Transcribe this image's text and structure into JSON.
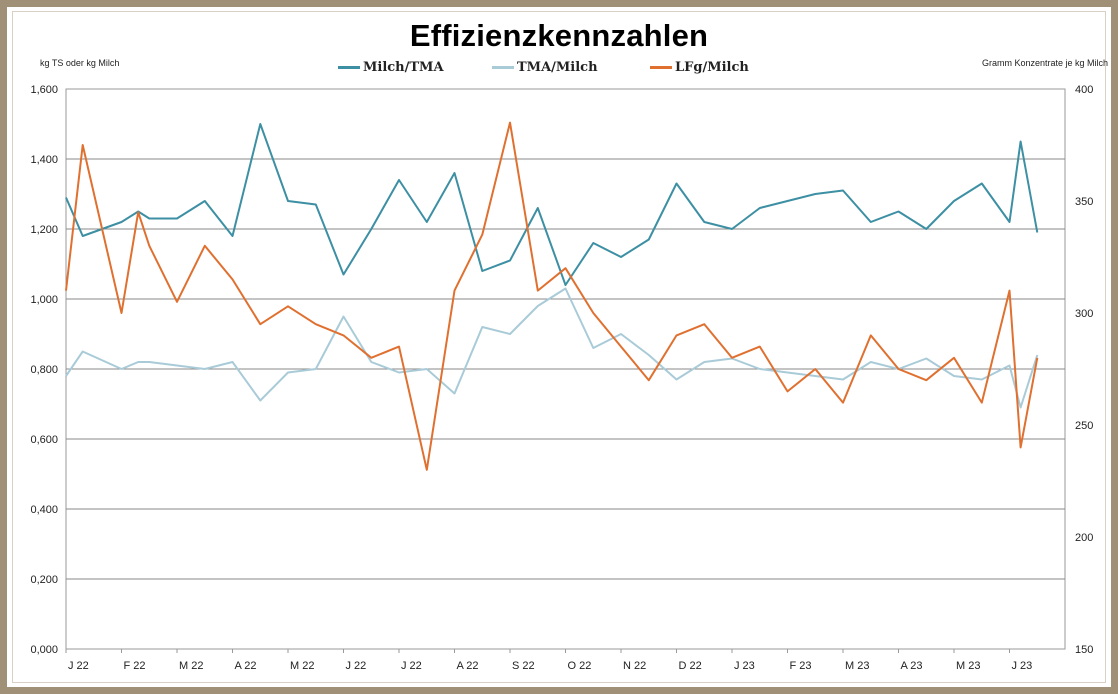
{
  "chart_data": {
    "type": "line",
    "title": "Effizienzkennzahlen",
    "ylabel_left": "kg TS oder kg Milch",
    "ylabel_right": "Gramm Konzentrate je kg Milch",
    "x_tick_labels": [
      "J 22",
      "F 22",
      "M 22",
      "A 22",
      "M 22",
      "J 22",
      "J 22",
      "A 22",
      "S 22",
      "O 22",
      "N 22",
      "D 22",
      "J 23",
      "F 23",
      "M 23",
      "A 23",
      "M 23",
      "J 23"
    ],
    "y_left_ticks": [
      "0,000",
      "0,200",
      "0,400",
      "0,600",
      "0,800",
      "1,000",
      "1,200",
      "1,400",
      "1,600"
    ],
    "y_right_ticks": [
      "150",
      "200",
      "250",
      "300",
      "350",
      "400"
    ],
    "ylim_left": [
      0,
      1.6
    ],
    "ylim_right": [
      150,
      400
    ],
    "grid": true,
    "legend_position": "top",
    "series": [
      {
        "name": "Milch/TMA",
        "axis": "left",
        "color": "#3d8fa3",
        "x": [
          0,
          0.3,
          1,
          1.3,
          1.5,
          2,
          2.5,
          3,
          3.5,
          4,
          4.5,
          5,
          5.5,
          6,
          6.5,
          7,
          7.5,
          8,
          8.5,
          9,
          9.5,
          10,
          10.5,
          11,
          11.5,
          12,
          12.5,
          13,
          13.5,
          14,
          14.5,
          15,
          15.5,
          16,
          16.5,
          17,
          17.2,
          17.5
        ],
        "y": [
          1.29,
          1.18,
          1.22,
          1.25,
          1.23,
          1.23,
          1.28,
          1.18,
          1.5,
          1.28,
          1.27,
          1.07,
          1.2,
          1.34,
          1.22,
          1.36,
          1.08,
          1.11,
          1.26,
          1.04,
          1.16,
          1.12,
          1.17,
          1.33,
          1.22,
          1.2,
          1.26,
          1.28,
          1.3,
          1.31,
          1.22,
          1.25,
          1.2,
          1.28,
          1.33,
          1.22,
          1.45,
          1.19
        ]
      },
      {
        "name": "TMA/Milch",
        "axis": "left",
        "color": "#a9cbd8",
        "x": [
          0,
          0.3,
          1,
          1.3,
          1.5,
          2,
          2.5,
          3,
          3.5,
          4,
          4.5,
          5,
          5.5,
          6,
          6.5,
          7,
          7.5,
          8,
          8.5,
          9,
          9.5,
          10,
          10.5,
          11,
          11.5,
          12,
          12.5,
          13,
          13.5,
          14,
          14.5,
          15,
          15.5,
          16,
          16.5,
          17,
          17.2,
          17.5
        ],
        "y": [
          0.78,
          0.85,
          0.8,
          0.82,
          0.82,
          0.81,
          0.8,
          0.82,
          0.71,
          0.79,
          0.8,
          0.95,
          0.82,
          0.79,
          0.8,
          0.73,
          0.92,
          0.9,
          0.98,
          1.03,
          0.86,
          0.9,
          0.84,
          0.77,
          0.82,
          0.83,
          0.8,
          0.79,
          0.78,
          0.77,
          0.82,
          0.8,
          0.83,
          0.78,
          0.77,
          0.81,
          0.69,
          0.84
        ]
      },
      {
        "name": "LFg/Milch",
        "axis": "right",
        "color": "#e07030",
        "x": [
          0,
          0.3,
          1,
          1.3,
          1.5,
          2,
          2.5,
          3,
          3.5,
          4,
          4.5,
          5,
          5.5,
          6,
          6.5,
          7,
          7.5,
          8,
          8.5,
          9,
          9.5,
          10,
          10.5,
          11,
          11.5,
          12,
          12.5,
          13,
          13.5,
          14,
          14.5,
          15,
          15.5,
          16,
          16.5,
          17,
          17.2,
          17.5
        ],
        "y": [
          310,
          375,
          300,
          345,
          330,
          305,
          330,
          315,
          295,
          303,
          295,
          290,
          280,
          285,
          230,
          310,
          335,
          385,
          310,
          320,
          300,
          285,
          270,
          290,
          295,
          280,
          285,
          265,
          275,
          260,
          290,
          275,
          270,
          280,
          260,
          310,
          240,
          280
        ]
      }
    ]
  }
}
